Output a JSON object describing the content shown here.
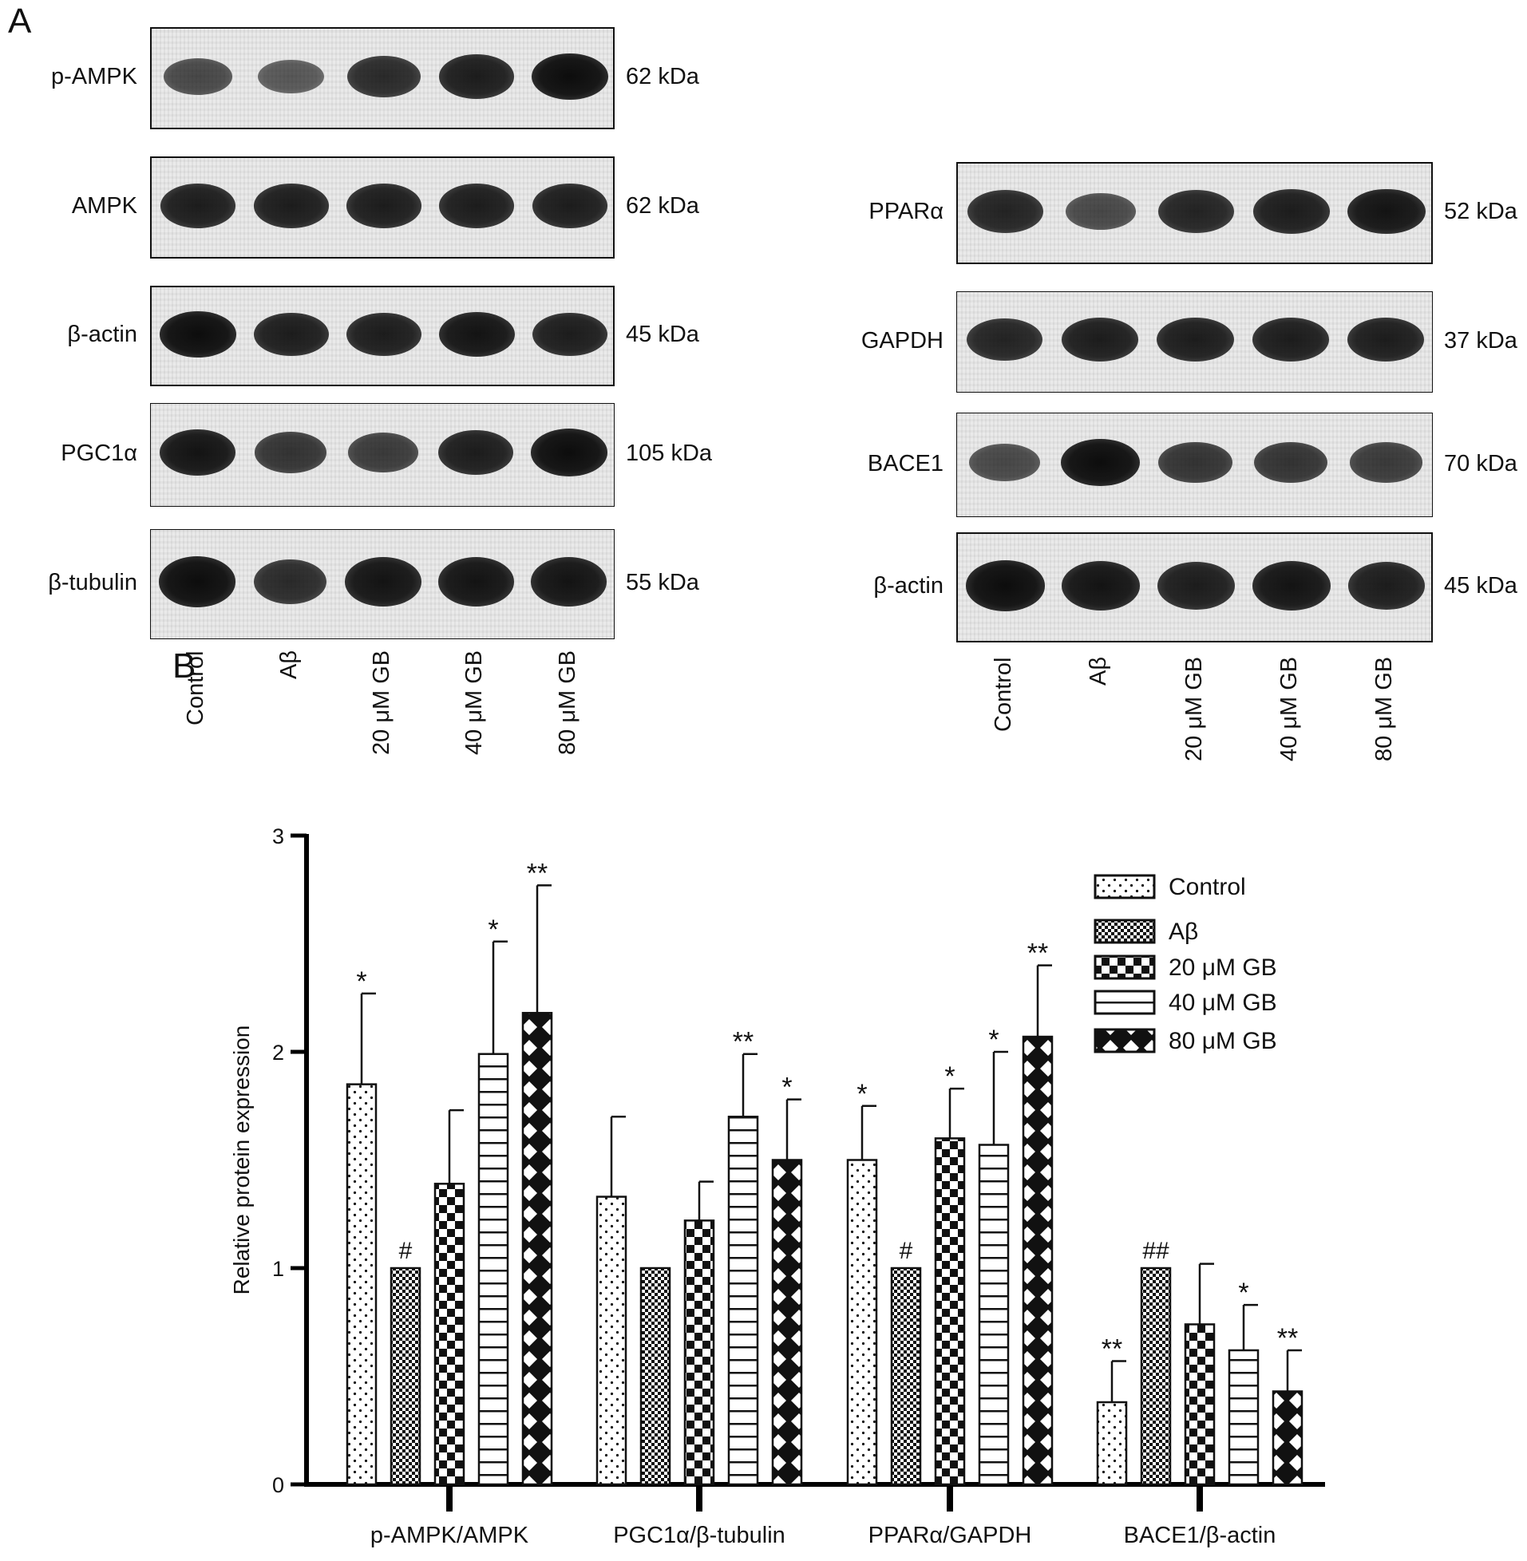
{
  "panel_a_label": "A",
  "panel_b_label": "B",
  "blots_left": [
    {
      "label": "p-AMPK",
      "kda": "62 kDa",
      "intensity": [
        0.55,
        0.45,
        0.75,
        0.85,
        0.95
      ]
    },
    {
      "label": "AMPK",
      "kda": "62 kDa",
      "intensity": [
        0.85,
        0.85,
        0.85,
        0.85,
        0.85
      ]
    },
    {
      "label": "β-actin",
      "kda": "45 kDa",
      "intensity": [
        0.95,
        0.85,
        0.85,
        0.9,
        0.85
      ]
    },
    {
      "label": "PGC1α",
      "kda": "105 kDa",
      "intensity": [
        0.9,
        0.7,
        0.65,
        0.85,
        0.95
      ]
    },
    {
      "label": "β-tubulin",
      "kda": "55 kDa",
      "intensity": [
        0.95,
        0.75,
        0.9,
        0.9,
        0.9
      ]
    }
  ],
  "blots_right": [
    {
      "label": "PPARα",
      "kda": "52 kDa",
      "intensity": [
        0.8,
        0.55,
        0.8,
        0.85,
        0.9
      ]
    },
    {
      "label": "GAPDH",
      "kda": "37 kDa",
      "intensity": [
        0.8,
        0.85,
        0.85,
        0.85,
        0.85
      ]
    },
    {
      "label": "BACE1",
      "kda": "70 kDa",
      "intensity": [
        0.55,
        0.95,
        0.7,
        0.7,
        0.65
      ]
    },
    {
      "label": "β-actin",
      "kda": "45 kDa",
      "intensity": [
        0.95,
        0.9,
        0.85,
        0.9,
        0.85
      ]
    }
  ],
  "lane_labels": [
    "Control",
    "Aβ",
    "20 μM GB",
    "40 μM GB",
    "80 μM GB"
  ],
  "chart_data": {
    "type": "bar",
    "ylabel": "Relative protein expression",
    "xlabel": "",
    "ylim": [
      0,
      3
    ],
    "yticks": [
      0,
      1,
      2,
      3
    ],
    "categories": [
      "p-AMPK/AMPK",
      "PGC1α/β-tubulin",
      "PPARα/GAPDH",
      "BACE1/β-actin"
    ],
    "legend_position": "top-right",
    "series": [
      {
        "name": "Control",
        "pattern": "dots",
        "values": [
          1.85,
          1.33,
          1.5,
          0.38
        ],
        "errors": [
          0.42,
          0.37,
          0.25,
          0.19
        ],
        "annotations": [
          "*",
          "",
          "*",
          "**"
        ]
      },
      {
        "name": "Aβ",
        "pattern": "checker-fine",
        "values": [
          1.0,
          1.0,
          1.0,
          1.0
        ],
        "errors": [
          0,
          0,
          0,
          0
        ],
        "annotations": [
          "#",
          "",
          "#",
          "##"
        ]
      },
      {
        "name": "20 μM GB",
        "pattern": "checker-large",
        "values": [
          1.39,
          1.22,
          1.6,
          0.74
        ],
        "errors": [
          0.34,
          0.18,
          0.23,
          0.28
        ],
        "annotations": [
          "",
          "",
          "*",
          ""
        ]
      },
      {
        "name": "40 μM GB",
        "pattern": "horizontal-lines",
        "values": [
          1.99,
          1.7,
          1.57,
          0.62
        ],
        "errors": [
          0.52,
          0.29,
          0.43,
          0.21
        ],
        "annotations": [
          "*",
          "**",
          "*",
          "*"
        ]
      },
      {
        "name": "80 μM GB",
        "pattern": "diamonds",
        "values": [
          2.18,
          1.5,
          2.07,
          0.43
        ],
        "errors": [
          0.59,
          0.28,
          0.33,
          0.19
        ],
        "annotations": [
          "**",
          "*",
          "**",
          "**"
        ]
      }
    ]
  }
}
